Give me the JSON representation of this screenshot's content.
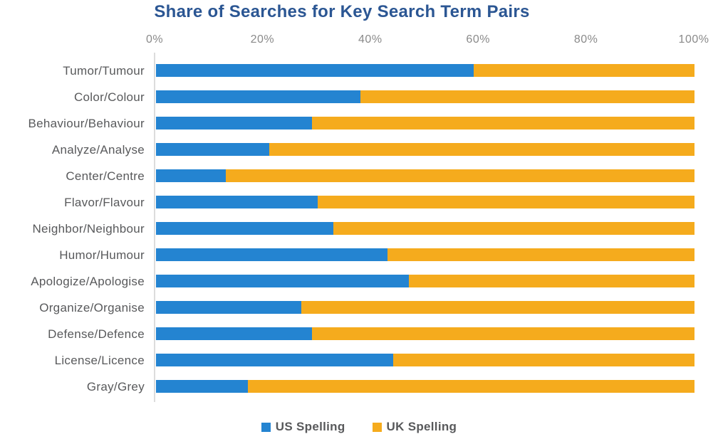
{
  "title": "Share of Searches for Key Search Term Pairs",
  "colors": {
    "us_blue": "#2484D1",
    "uk_yellow": "#F5AB1D",
    "title_blue": "#2B5693",
    "category_label_gray": "#58595B",
    "tick_gray": "#8A8A8A",
    "axis_line_gray": "#DCDCDC",
    "background": "#FFFFFF"
  },
  "chart_data": {
    "type": "bar",
    "orientation": "horizontal",
    "stacked": true,
    "title": "Share of Searches for Key Search Term Pairs",
    "categories": [
      "Tumor/Tumour",
      "Color/Colour",
      "Behaviour/Behaviour",
      "Analyze/Analyse",
      "Center/Centre",
      "Flavor/Flavour",
      "Neighbor/Neighbour",
      "Humor/Humour",
      "Apologize/Apologise",
      "Organize/Organise",
      "Defense/Defence",
      "License/Licence",
      "Gray/Grey"
    ],
    "series": [
      {
        "name": "US Spelling",
        "color": "#2484D1",
        "values": [
          59,
          38,
          29,
          21,
          13,
          30,
          33,
          43,
          47,
          27,
          29,
          44,
          17
        ]
      },
      {
        "name": "UK Spelling",
        "color": "#F5AB1D",
        "values": [
          41,
          62,
          71,
          79,
          87,
          70,
          67,
          57,
          53,
          73,
          71,
          56,
          83
        ]
      }
    ],
    "x_axis": {
      "ticks": [
        "0%",
        "20%",
        "40%",
        "60%",
        "80%",
        "100%"
      ],
      "min": 0,
      "max": 100,
      "unit": "%"
    },
    "ylabel": "",
    "xlabel": "",
    "grid": false,
    "legend_position": "bottom"
  }
}
